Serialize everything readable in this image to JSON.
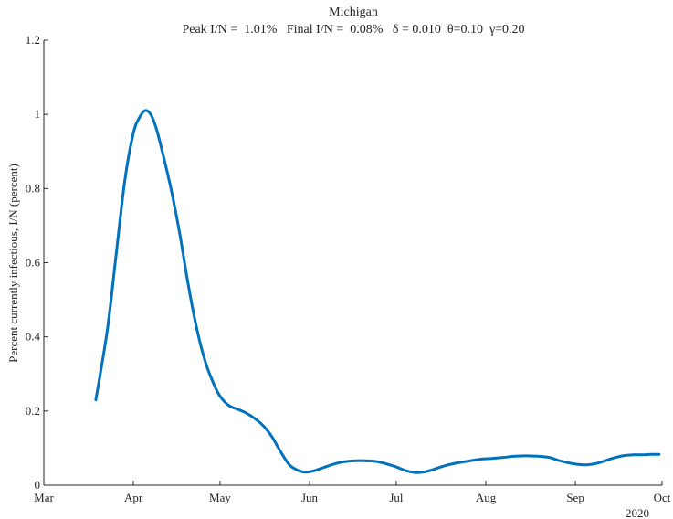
{
  "chart_data": {
    "type": "line",
    "title": "Michigan",
    "subtitle": "Peak I/N =  1.01%   Final I/N =  0.08%   δ = 0.010  θ=0.10  γ=0.20",
    "xlabel": "",
    "ylabel": "Percent currently infectious, I/N (percent)",
    "year_label": "2020",
    "x_tick_labels": [
      "Mar",
      "Apr",
      "May",
      "Jun",
      "Jul",
      "Aug",
      "Sep",
      "Oct"
    ],
    "x_ticks": [
      "2020-03-01",
      "2020-04-01",
      "2020-05-01",
      "2020-06-01",
      "2020-07-01",
      "2020-08-01",
      "2020-09-01",
      "2020-10-01"
    ],
    "y_tick_labels": [
      "0",
      "0.2",
      "0.4",
      "0.6",
      "0.8",
      "1",
      "1.2"
    ],
    "y_ticks": [
      0,
      0.2,
      0.4,
      0.6,
      0.8,
      1.0,
      1.2
    ],
    "xlim": [
      "2020-03-01",
      "2020-10-01"
    ],
    "ylim": [
      0,
      1.2
    ],
    "grid": false,
    "color": "#0072BD",
    "series": [
      {
        "x": [
          "2020-03-19",
          "2020-03-23",
          "2020-03-26",
          "2020-03-29",
          "2020-04-01",
          "2020-04-03",
          "2020-04-05",
          "2020-04-07",
          "2020-04-09",
          "2020-04-11",
          "2020-04-14",
          "2020-04-17",
          "2020-04-20",
          "2020-04-23",
          "2020-04-26",
          "2020-04-29",
          "2020-05-01",
          "2020-05-04",
          "2020-05-07",
          "2020-05-10",
          "2020-05-13",
          "2020-05-16",
          "2020-05-19",
          "2020-05-22",
          "2020-05-25",
          "2020-05-28",
          "2020-05-31",
          "2020-06-03",
          "2020-06-06",
          "2020-06-09",
          "2020-06-12",
          "2020-06-15",
          "2020-06-19",
          "2020-06-24",
          "2020-06-30",
          "2020-07-04",
          "2020-07-08",
          "2020-07-12",
          "2020-07-16",
          "2020-07-19",
          "2020-07-22",
          "2020-07-26",
          "2020-07-30",
          "2020-08-03",
          "2020-08-07",
          "2020-08-11",
          "2020-08-15",
          "2020-08-19",
          "2020-08-23",
          "2020-08-27",
          "2020-09-01",
          "2020-09-05",
          "2020-09-09",
          "2020-09-12",
          "2020-09-15",
          "2020-09-18",
          "2020-09-21",
          "2020-09-24",
          "2020-09-27",
          "2020-09-30"
        ],
        "y": [
          0.23,
          0.42,
          0.62,
          0.82,
          0.95,
          0.99,
          1.01,
          1.0,
          0.96,
          0.9,
          0.8,
          0.68,
          0.54,
          0.42,
          0.33,
          0.27,
          0.24,
          0.215,
          0.205,
          0.195,
          0.18,
          0.16,
          0.13,
          0.09,
          0.055,
          0.04,
          0.035,
          0.04,
          0.048,
          0.056,
          0.062,
          0.065,
          0.066,
          0.064,
          0.052,
          0.04,
          0.034,
          0.038,
          0.048,
          0.055,
          0.06,
          0.065,
          0.07,
          0.072,
          0.075,
          0.078,
          0.079,
          0.078,
          0.075,
          0.065,
          0.057,
          0.055,
          0.06,
          0.068,
          0.075,
          0.08,
          0.082,
          0.082,
          0.083,
          0.083
        ]
      }
    ]
  }
}
